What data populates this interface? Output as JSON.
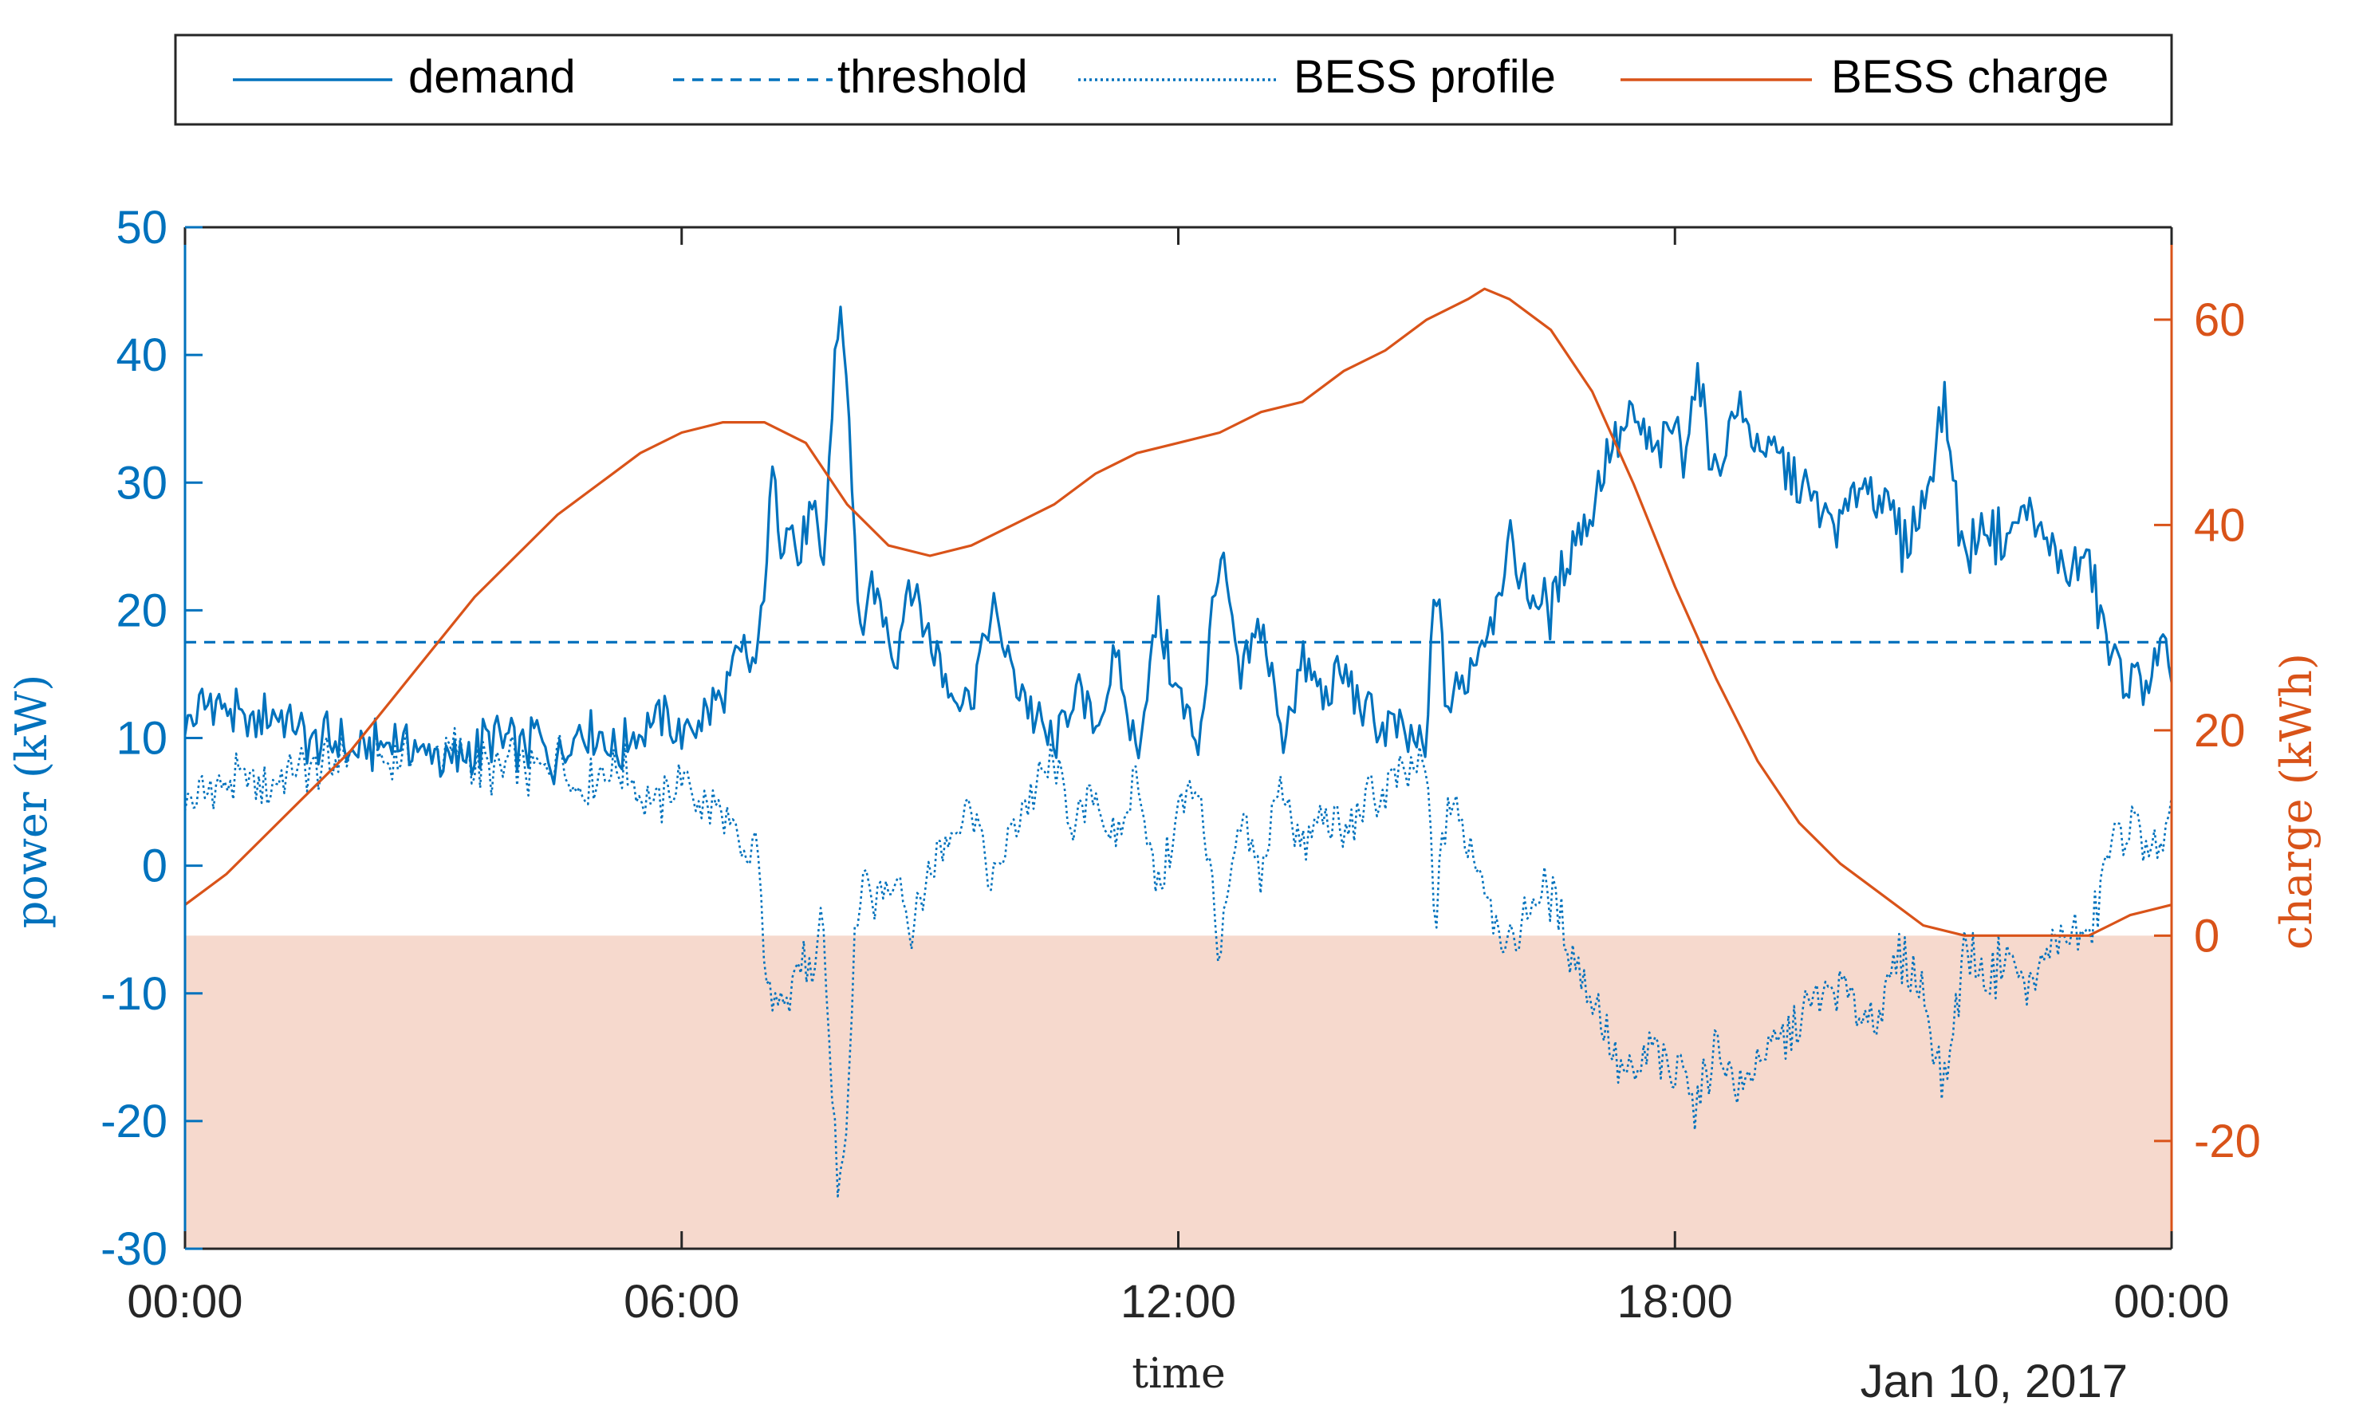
{
  "chart_data": {
    "type": "line",
    "title": "",
    "date_label": "Jan 10, 2017",
    "xlabel": "time",
    "x_unit": "hours since 00:00",
    "xlim": [
      0,
      24
    ],
    "x_ticks": [
      {
        "value": 0,
        "label": "00:00"
      },
      {
        "value": 6,
        "label": "06:00"
      },
      {
        "value": 12,
        "label": "12:00"
      },
      {
        "value": 18,
        "label": "18:00"
      },
      {
        "value": 24,
        "label": "00:00"
      }
    ],
    "y_left": {
      "label": "power (kW)",
      "lim": [
        -30,
        50
      ],
      "ticks": [
        50,
        40,
        30,
        20,
        10,
        0,
        -10,
        -20,
        -30
      ],
      "color": "#0072BD"
    },
    "y_right": {
      "label": "charge (kWh)",
      "lim": [
        -30.5,
        69
      ],
      "ticks": [
        60,
        40,
        20,
        0,
        -20
      ],
      "color": "#D95319"
    },
    "shaded_region": {
      "axis": "right",
      "from": -30.5,
      "to": 0,
      "color": "#F6D9CD"
    },
    "legend": {
      "placement": "top",
      "entries": [
        "demand",
        "threshold",
        "BESS profile",
        "BESS charge"
      ]
    },
    "series": [
      {
        "name": "demand",
        "axis": "left",
        "style": "solid",
        "color": "#0072BD",
        "x": [
          0,
          0.25,
          0.5,
          0.75,
          1,
          1.25,
          1.5,
          1.75,
          2,
          2.25,
          2.5,
          2.75,
          3,
          3.25,
          3.5,
          3.75,
          4,
          4.25,
          4.5,
          4.75,
          5,
          5.25,
          5.5,
          5.75,
          6,
          6.25,
          6.5,
          6.75,
          6.9,
          7,
          7.1,
          7.2,
          7.3,
          7.4,
          7.5,
          7.6,
          7.7,
          7.8,
          7.9,
          8,
          8.1,
          8.2,
          8.3,
          8.4,
          8.5,
          8.6,
          8.75,
          9,
          9.25,
          9.5,
          9.75,
          10,
          10.25,
          10.5,
          10.75,
          11,
          11.25,
          11.5,
          11.75,
          12,
          12.25,
          12.5,
          12.75,
          13,
          13.25,
          13.5,
          13.75,
          14,
          14.25,
          14.5,
          14.75,
          15,
          15.1,
          15.25,
          15.5,
          15.75,
          16,
          16.25,
          16.5,
          16.75,
          17,
          17.25,
          17.5,
          17.75,
          18,
          18.1,
          18.25,
          18.5,
          18.75,
          19,
          19.25,
          19.5,
          19.75,
          20,
          20.25,
          20.5,
          20.75,
          21,
          21.25,
          21.5,
          21.75,
          22,
          22.25,
          22.5,
          22.75,
          23,
          23.25,
          23.5,
          23.75,
          23.9,
          24
        ],
        "y": [
          11,
          13,
          12,
          11,
          12,
          11,
          10,
          10,
          9,
          9,
          10,
          9,
          9,
          8,
          9,
          10,
          9,
          10,
          8,
          11,
          10,
          9,
          11,
          12,
          10,
          12,
          13,
          17,
          15,
          23,
          31,
          26,
          28,
          24,
          26,
          28,
          21,
          34,
          44,
          38,
          23,
          17,
          22,
          20,
          19,
          16,
          23,
          18,
          14,
          13,
          20,
          15,
          12,
          9,
          14,
          11,
          16,
          9,
          20,
          13,
          10,
          25,
          14,
          19,
          10,
          16,
          13,
          15,
          12,
          11,
          10,
          9,
          23,
          12,
          15,
          19,
          25,
          21,
          20,
          25,
          28,
          33,
          35,
          32,
          35,
          32,
          38,
          31,
          36,
          33,
          32,
          30,
          28,
          27,
          30,
          29,
          25,
          28,
          36,
          24,
          27,
          25,
          28,
          25,
          23,
          24,
          16,
          14,
          15,
          17,
          13
        ],
        "noise_amplitude": 2.5
      },
      {
        "name": "threshold",
        "axis": "left",
        "style": "dashed",
        "color": "#0072BD",
        "x": [
          0,
          24
        ],
        "y": [
          17.5,
          17.5
        ]
      },
      {
        "name": "BESS profile",
        "axis": "left",
        "style": "dotted",
        "color": "#0072BD",
        "x": [
          0,
          0.25,
          0.5,
          0.75,
          1,
          1.25,
          1.5,
          1.75,
          2,
          2.25,
          2.5,
          2.75,
          3,
          3.25,
          3.5,
          3.75,
          4,
          4.25,
          4.5,
          4.75,
          5,
          5.25,
          5.5,
          5.75,
          6,
          6.25,
          6.5,
          6.75,
          6.9,
          7,
          7.1,
          7.2,
          7.3,
          7.4,
          7.5,
          7.6,
          7.7,
          7.8,
          7.9,
          8,
          8.1,
          8.2,
          8.3,
          8.4,
          8.5,
          8.6,
          8.75,
          9,
          9.25,
          9.5,
          9.75,
          10,
          10.25,
          10.5,
          10.75,
          11,
          11.25,
          11.5,
          11.75,
          12,
          12.25,
          12.5,
          12.75,
          13,
          13.25,
          13.5,
          13.75,
          14,
          14.25,
          14.5,
          14.75,
          15,
          15.1,
          15.25,
          15.5,
          15.75,
          16,
          16.25,
          16.5,
          16.75,
          17,
          17.25,
          17.5,
          17.75,
          18,
          18.1,
          18.25,
          18.5,
          18.75,
          19,
          19.25,
          19.5,
          19.75,
          20,
          20.25,
          20.5,
          20.75,
          21,
          21.25,
          21.5,
          21.75,
          22,
          22.25,
          22.5,
          22.75,
          23,
          23.25,
          23.5,
          23.75,
          23.9,
          24
        ],
        "y": [
          5,
          6,
          6,
          7,
          6,
          7,
          8,
          8,
          9,
          9,
          8,
          9,
          9,
          9,
          8,
          7,
          8,
          7,
          9,
          6,
          7,
          8,
          6,
          5,
          7,
          5,
          4,
          0,
          2,
          -6,
          -12,
          -8,
          -10,
          -7,
          -8,
          -10,
          -4,
          -16,
          -26,
          -20,
          -5,
          -1,
          -4,
          -2,
          -1,
          0,
          -5,
          0,
          3,
          5,
          -2,
          3,
          6,
          8,
          3,
          6,
          1,
          8,
          -2,
          4,
          7,
          -7,
          3,
          -1,
          7,
          1,
          4,
          2,
          5,
          6,
          7,
          8,
          -5,
          5,
          2,
          -2,
          -7,
          -3,
          -2,
          -7,
          -10,
          -15,
          -17,
          -14,
          -17,
          -14,
          -20,
          -13,
          -18,
          -15,
          -14,
          -12,
          -10,
          -9,
          -12,
          -11,
          -7,
          -10,
          -18,
          -6,
          -9,
          -7,
          -10,
          -7,
          -5,
          -6,
          1,
          3,
          2,
          0,
          4
        ],
        "noise_amplitude": 2.5
      },
      {
        "name": "BESS charge",
        "axis": "right",
        "style": "solid",
        "color": "#D95319",
        "x": [
          0,
          0.5,
          1,
          1.5,
          2,
          2.5,
          3,
          3.5,
          4,
          4.5,
          5,
          5.5,
          6,
          6.5,
          7,
          7.5,
          8,
          8.5,
          9,
          9.5,
          10,
          10.5,
          11,
          11.5,
          12,
          12.5,
          13,
          13.5,
          14,
          14.5,
          15,
          15.5,
          15.7,
          16,
          16.5,
          17,
          17.5,
          18,
          18.5,
          19,
          19.5,
          20,
          20.5,
          21,
          21.5,
          22,
          22.5,
          23,
          23.25,
          23.5,
          24
        ],
        "y": [
          3,
          6,
          10,
          14,
          18,
          23,
          28,
          33,
          37,
          41,
          44,
          47,
          49,
          50,
          50,
          48,
          42,
          38,
          37,
          38,
          40,
          42,
          45,
          47,
          48,
          49,
          51,
          52,
          55,
          57,
          60,
          62,
          63,
          62,
          59,
          53,
          44,
          34,
          25,
          17,
          11,
          7,
          4,
          1,
          0,
          0,
          0,
          0,
          1,
          2,
          3
        ]
      }
    ]
  }
}
